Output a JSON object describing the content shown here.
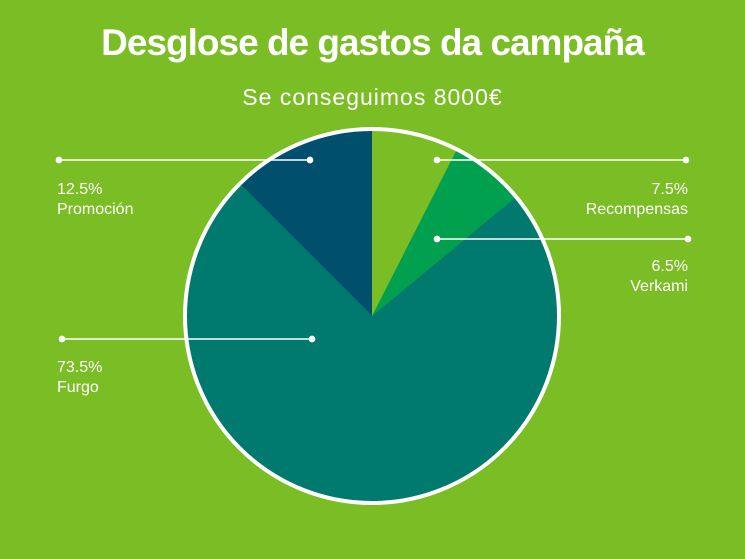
{
  "header": {
    "title": "Desglose de gastos da campaña",
    "subtitle": "Se conseguimos 8000€"
  },
  "colors": {
    "background": "#7BBD24",
    "outline": "#ffffff"
  },
  "chart_data": {
    "type": "pie",
    "title": "Desglose de gastos da campaña",
    "subtitle": "Se conseguimos 8000€",
    "legend": "none",
    "slices": [
      {
        "name": "Recompensas",
        "value": 7.5,
        "label": "7.5%",
        "color": "#7BBD24"
      },
      {
        "name": "Verkami",
        "value": 6.5,
        "label": "6.5%",
        "color": "#00A04F"
      },
      {
        "name": "Furgo",
        "value": 73.5,
        "label": "73.5%",
        "color": "#00796F"
      },
      {
        "name": "Promoción",
        "value": 12.5,
        "label": "12.5%",
        "color": "#004F6C"
      }
    ]
  }
}
